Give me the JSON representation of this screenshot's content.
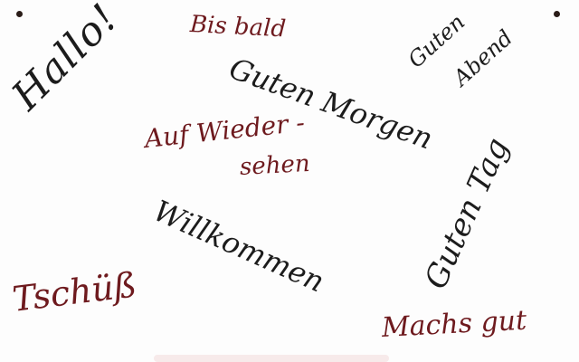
{
  "board": {
    "words": {
      "hallo": "Hallo!",
      "bis_bald": "Bis bald",
      "guten_morgen": "Guten Morgen",
      "guten_abend_line1": "Guten",
      "guten_abend_line2": "Abend",
      "auf_wiedersehen_line1": "Auf Wieder -",
      "auf_wiedersehen_line2": "sehen",
      "willkommen": "Willkommen",
      "guten_tag": "Guten Tag",
      "tschuess": "Tschüß",
      "machs_gut": "Machs gut"
    }
  }
}
